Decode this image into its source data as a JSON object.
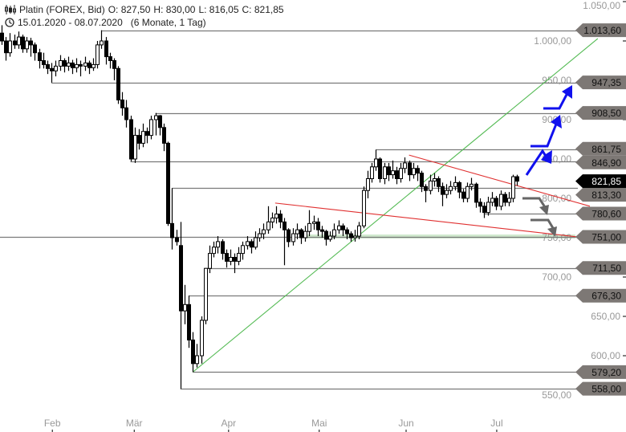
{
  "header": {
    "instrument": "Platin (FOREX, Bid)",
    "open": "O: 827,50",
    "high": "H: 830,00",
    "low": "L: 816,05",
    "close": "C: 821,85",
    "range": "15.01.2020 - 08.07.2020",
    "period": "(6 Monate, 1 Tag)",
    "chart_icon": "candlestick-icon",
    "time_icon": "clock-icon"
  },
  "colors": {
    "up": "#ffffff",
    "down": "#000000",
    "level_line": "#7a7a7a",
    "tag_bg": "#7d7875",
    "current_tag_bg": "#000000",
    "trend_green": "#55bb55",
    "trend_red": "#e03030",
    "band_green": "#cfe8cc",
    "arrow_blue": "#1010ee",
    "arrow_gray": "#666666",
    "axis_text": "#999999"
  },
  "chart_data": {
    "type": "candlestick",
    "title": "Platin (FOREX, Bid)",
    "ylim": [
      520,
      1055
    ],
    "y_ticks": [
      {
        "value": 1050,
        "label": "1.050,00"
      },
      {
        "value": 1000,
        "label": "1.000,00"
      },
      {
        "value": 950,
        "label": "950,00"
      },
      {
        "value": 900,
        "label": "900,00"
      },
      {
        "value": 850,
        "label": "850,00"
      },
      {
        "value": 800,
        "label": "800,00"
      },
      {
        "value": 750,
        "label": "750,00"
      },
      {
        "value": 700,
        "label": "700,00"
      },
      {
        "value": 650,
        "label": "650,00"
      },
      {
        "value": 600,
        "label": "600,00"
      },
      {
        "value": 550,
        "label": "550,00"
      }
    ],
    "x_ticks": [
      {
        "index": 12.2,
        "label": "Feb"
      },
      {
        "index": 31.9,
        "label": "Mär"
      },
      {
        "index": 54.6,
        "label": "Apr"
      },
      {
        "index": 76.4,
        "label": "Mai"
      },
      {
        "index": 97.3,
        "label": "Jun"
      },
      {
        "index": 119.1,
        "label": "Jul"
      }
    ],
    "candles_ohlc": [
      [
        1010,
        1020,
        995,
        1000
      ],
      [
        1000,
        1005,
        975,
        985
      ],
      [
        985,
        1010,
        980,
        1000
      ],
      [
        1000,
        1008,
        990,
        995
      ],
      [
        995,
        1012,
        990,
        1005
      ],
      [
        1005,
        1008,
        985,
        990
      ],
      [
        990,
        1005,
        985,
        1000
      ],
      [
        1000,
        1004,
        980,
        995
      ],
      [
        995,
        998,
        975,
        985
      ],
      [
        985,
        990,
        965,
        975
      ],
      [
        975,
        985,
        965,
        970
      ],
      [
        970,
        975,
        958,
        965
      ],
      [
        965,
        972,
        947,
        962
      ],
      [
        962,
        975,
        955,
        968
      ],
      [
        968,
        982,
        962,
        975
      ],
      [
        975,
        978,
        960,
        968
      ],
      [
        968,
        980,
        962,
        972
      ],
      [
        972,
        976,
        958,
        966
      ],
      [
        966,
        978,
        960,
        970
      ],
      [
        970,
        975,
        955,
        968
      ],
      [
        968,
        980,
        962,
        972
      ],
      [
        972,
        975,
        958,
        966
      ],
      [
        966,
        978,
        962,
        970
      ],
      [
        970,
        1000,
        965,
        995
      ],
      [
        995,
        1013.6,
        990,
        1000
      ],
      [
        1000,
        1005,
        970,
        980
      ],
      [
        980,
        985,
        965,
        975
      ],
      [
        975,
        978,
        950,
        965
      ],
      [
        965,
        968,
        920,
        925
      ],
      [
        925,
        935,
        905,
        915
      ],
      [
        915,
        925,
        890,
        900
      ],
      [
        900,
        905,
        846.9,
        850
      ],
      [
        850,
        890,
        845,
        880
      ],
      [
        880,
        888,
        862,
        870
      ],
      [
        870,
        895,
        865,
        885
      ],
      [
        885,
        890,
        870,
        880
      ],
      [
        880,
        905,
        875,
        900
      ],
      [
        900,
        908.5,
        880,
        905
      ],
      [
        905,
        906,
        880,
        890
      ],
      [
        890,
        895,
        860,
        870
      ],
      [
        870,
        872,
        765,
        768
      ],
      [
        768,
        813,
        735,
        750
      ],
      [
        750,
        760,
        740,
        745
      ],
      [
        740,
        770,
        558,
        657
      ],
      [
        657,
        690,
        640,
        665
      ],
      [
        665,
        676.3,
        610,
        620
      ],
      [
        620,
        630,
        579.2,
        590
      ],
      [
        590,
        615,
        585,
        600
      ],
      [
        600,
        650,
        590,
        645
      ],
      [
        645,
        711.5,
        640,
        711
      ],
      [
        711,
        740,
        705,
        730
      ],
      [
        730,
        745,
        725,
        738
      ],
      [
        738,
        752,
        730,
        745
      ],
      [
        745,
        748,
        722,
        730
      ],
      [
        730,
        735,
        712,
        720
      ],
      [
        720,
        735,
        715,
        725
      ],
      [
        725,
        730,
        705,
        720
      ],
      [
        720,
        738,
        715,
        730
      ],
      [
        730,
        745,
        722,
        740
      ],
      [
        740,
        752,
        735,
        745
      ],
      [
        745,
        748,
        730,
        738
      ],
      [
        738,
        758,
        735,
        750
      ],
      [
        750,
        762,
        745,
        755
      ],
      [
        755,
        768,
        748,
        760
      ],
      [
        760,
        790,
        755,
        770
      ],
      [
        770,
        782,
        762,
        775
      ],
      [
        775,
        790,
        768,
        780
      ],
      [
        780,
        785,
        762,
        770
      ],
      [
        770,
        775,
        715,
        760
      ],
      [
        760,
        762,
        738,
        745
      ],
      [
        745,
        762,
        740,
        755
      ],
      [
        755,
        768,
        748,
        760
      ],
      [
        760,
        762,
        742,
        750
      ],
      [
        750,
        765,
        745,
        758
      ],
      [
        758,
        785,
        752,
        768
      ],
      [
        768,
        778,
        760,
        770
      ],
      [
        770,
        775,
        752,
        760
      ],
      [
        760,
        765,
        750,
        758
      ],
      [
        758,
        760,
        740,
        748
      ],
      [
        748,
        758,
        745,
        752
      ],
      [
        752,
        768,
        748,
        760
      ],
      [
        760,
        772,
        755,
        765
      ],
      [
        765,
        768,
        752,
        760
      ],
      [
        760,
        763,
        748,
        755
      ],
      [
        755,
        758,
        745,
        750
      ],
      [
        750,
        760,
        745,
        752
      ],
      [
        752,
        770,
        748,
        765
      ],
      [
        765,
        815,
        762,
        810
      ],
      [
        810,
        835,
        800,
        825
      ],
      [
        825,
        845,
        820,
        840
      ],
      [
        840,
        861.75,
        835,
        850
      ],
      [
        850,
        852,
        820,
        825
      ],
      [
        825,
        845,
        818,
        840
      ],
      [
        840,
        845,
        822,
        830
      ],
      [
        830,
        848,
        825,
        835
      ],
      [
        835,
        840,
        818,
        825
      ],
      [
        825,
        845,
        820,
        838
      ],
      [
        838,
        852,
        832,
        845
      ],
      [
        845,
        848,
        822,
        830
      ],
      [
        830,
        845,
        825,
        838
      ],
      [
        838,
        842,
        822,
        832
      ],
      [
        832,
        835,
        808,
        815
      ],
      [
        815,
        818,
        795,
        810
      ],
      [
        810,
        830,
        805,
        822
      ],
      [
        822,
        832,
        815,
        825
      ],
      [
        825,
        828,
        808,
        815
      ],
      [
        815,
        820,
        790,
        805
      ],
      [
        805,
        818,
        800,
        810
      ],
      [
        810,
        822,
        805,
        815
      ],
      [
        815,
        828,
        810,
        820
      ],
      [
        820,
        822,
        800,
        808
      ],
      [
        808,
        812,
        795,
        800
      ],
      [
        800,
        820,
        795,
        815
      ],
      [
        815,
        826,
        810,
        818
      ],
      [
        818,
        820,
        788,
        795
      ],
      [
        795,
        800,
        782,
        790
      ],
      [
        790,
        795,
        775,
        782
      ],
      [
        782,
        802,
        778,
        795
      ],
      [
        795,
        808,
        790,
        800
      ],
      [
        800,
        803,
        785,
        790
      ],
      [
        790,
        810,
        785,
        805
      ],
      [
        805,
        808,
        790,
        795
      ],
      [
        795,
        808,
        790,
        800
      ],
      [
        800,
        830,
        795,
        827.5
      ],
      [
        827.5,
        830,
        816.05,
        821.85
      ]
    ],
    "levels": [
      {
        "value": 1013.6,
        "label": "1.013,60",
        "from_index": 24
      },
      {
        "value": 947.35,
        "label": "947,35",
        "from_index": 12
      },
      {
        "value": 908.5,
        "label": "908,50",
        "from_index": 37
      },
      {
        "value": 861.75,
        "label": "861,75",
        "from_index": 90
      },
      {
        "value": 846.9,
        "label": "846,90",
        "from_index": 31
      },
      {
        "value": 813.3,
        "label": "813,30",
        "from_index": 41
      },
      {
        "value": 780.6,
        "label": "780,60",
        "from_index": 116
      },
      {
        "value": 751.0,
        "label": "751,00",
        "from_index": -1
      },
      {
        "value": 711.5,
        "label": "711,50",
        "from_index": 49
      },
      {
        "value": 676.3,
        "label": "676,30",
        "from_index": 45
      },
      {
        "value": 579.2,
        "label": "579,20",
        "from_index": 46
      },
      {
        "value": 558.0,
        "label": "558,00",
        "from_index": 43
      }
    ],
    "current_price": {
      "value": 821.85,
      "label": "821,85"
    },
    "trendlines": [
      {
        "name": "support-uptrend",
        "color": "green",
        "from": [
          46,
          579.2
        ],
        "to": [
          143.4,
          1003
        ]
      },
      {
        "name": "resistance-upper",
        "color": "red",
        "from": [
          98,
          855
        ],
        "to": [
          141.5,
          790
        ]
      },
      {
        "name": "resistance-lower",
        "color": "red",
        "from": [
          65.8,
          794
        ],
        "to": [
          138.6,
          751
        ]
      }
    ],
    "support_band": {
      "from_index": 73,
      "to_index": 138,
      "low": 749,
      "high": 754
    }
  }
}
